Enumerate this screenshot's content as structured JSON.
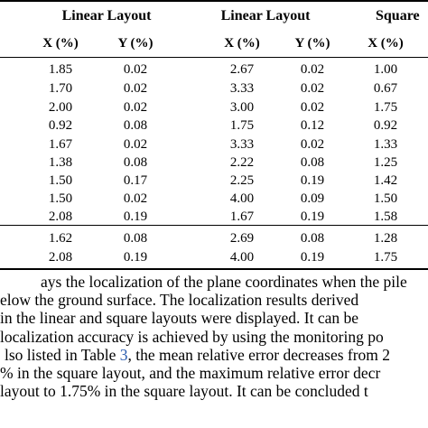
{
  "table": {
    "group_headers": [
      "Linear Layout",
      "Linear Layout",
      "Square"
    ],
    "column_headers": [
      "X (%)",
      "Y (%)",
      "X (%)",
      "Y (%)",
      "X (%)"
    ],
    "rows": [
      [
        "1.85",
        "0.02",
        "2.67",
        "0.02",
        "1.00"
      ],
      [
        "1.70",
        "0.02",
        "3.33",
        "0.02",
        "0.67"
      ],
      [
        "2.00",
        "0.02",
        "3.00",
        "0.02",
        "1.75"
      ],
      [
        "0.92",
        "0.08",
        "1.75",
        "0.12",
        "0.92"
      ],
      [
        "1.67",
        "0.02",
        "3.33",
        "0.02",
        "1.33"
      ],
      [
        "1.38",
        "0.08",
        "2.22",
        "0.08",
        "1.25"
      ],
      [
        "1.50",
        "0.17",
        "2.25",
        "0.19",
        "1.42"
      ],
      [
        "1.50",
        "0.02",
        "4.00",
        "0.09",
        "1.50"
      ],
      [
        "2.08",
        "0.19",
        "1.67",
        "0.19",
        "1.58"
      ]
    ],
    "summary_rows": [
      [
        "1.62",
        "0.08",
        "2.69",
        "0.08",
        "1.28"
      ],
      [
        "2.08",
        "0.19",
        "4.00",
        "0.19",
        "1.75"
      ]
    ]
  },
  "paragraph": {
    "line1": "ays the localization of the plane coordinates when the pile",
    "line2": "elow the ground surface. The localization results derived",
    "line3": "in the linear and square layouts were displayed. It can be",
    "line4": "localization accuracy is achieved by using the monitoring po",
    "line5_a": "lso listed in Table ",
    "line5_ref": "3",
    "line5_b": ", the mean relative error decreases from 2",
    "line6": "% in the square layout, and the maximum relative error decr",
    "line7": "layout to 1.75% in the square layout. It can be concluded t"
  }
}
